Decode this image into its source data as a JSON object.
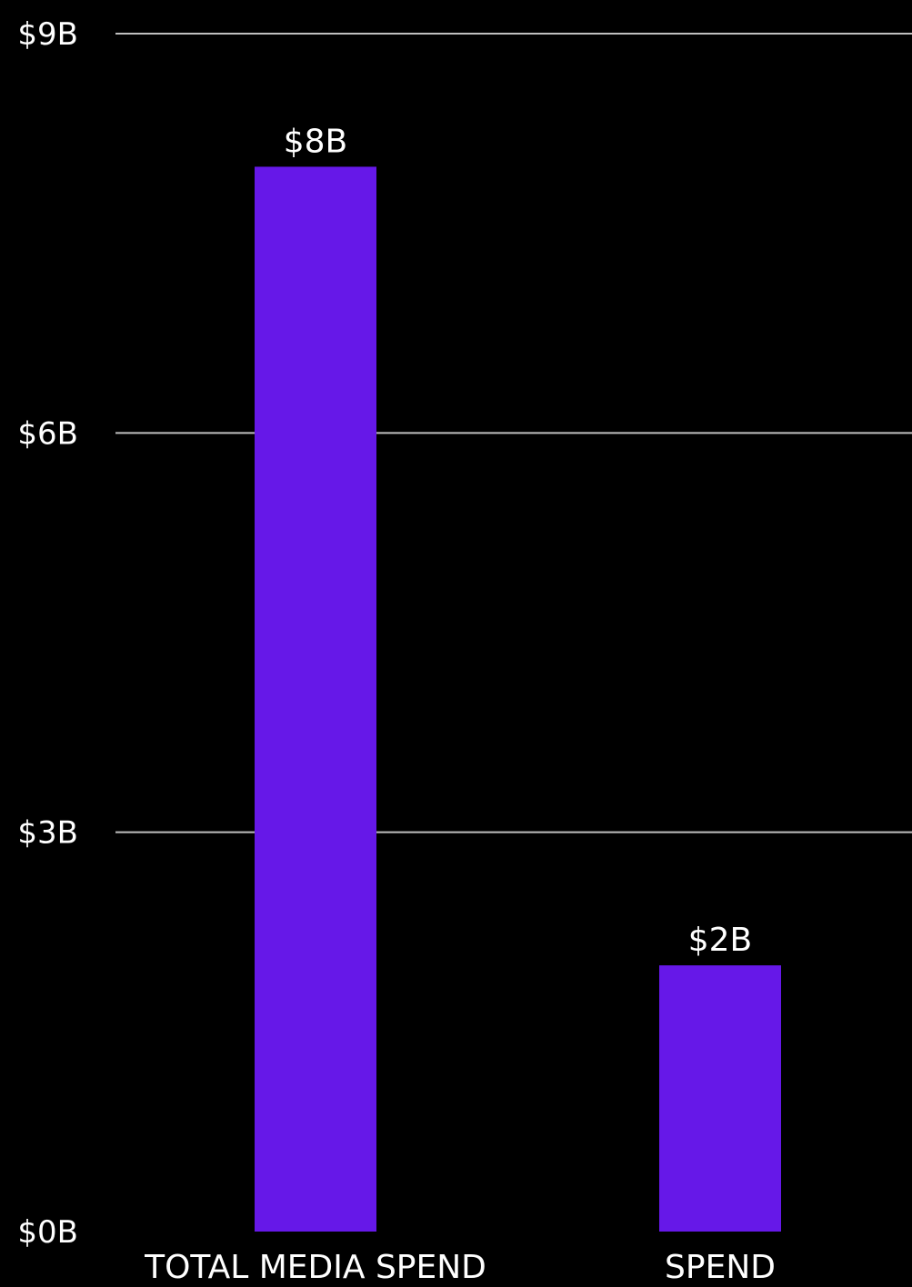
{
  "chart_data": {
    "type": "bar",
    "categories": [
      "TOTAL MEDIA SPEND",
      "SPEND"
    ],
    "values": [
      8.0,
      2.0
    ],
    "data_labels": [
      "$8B",
      "$2B"
    ],
    "ylim": [
      0,
      9
    ],
    "yticks": [
      {
        "value": 0,
        "label": "$0B"
      },
      {
        "value": 3,
        "label": "$3B"
      },
      {
        "value": 6,
        "label": "$6B"
      },
      {
        "value": 9,
        "label": "$9B"
      }
    ],
    "title": "",
    "xlabel": "",
    "ylabel": "",
    "grid": true,
    "legend": "none",
    "colors": {
      "background": "#000000",
      "bar": "#6618E8",
      "grid": "#bfbfbf",
      "text": "#ffffff"
    }
  }
}
